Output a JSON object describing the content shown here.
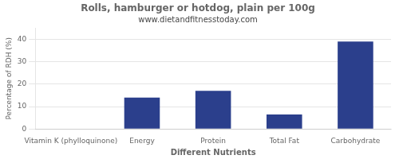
{
  "chart_data": {
    "type": "bar",
    "title": "Rolls, hamburger or hotdog, plain per 100g",
    "subtitle": "www.dietandfitnesstoday.com",
    "xlabel": "Different Nutrients",
    "ylabel": "Percentage of RDH (%)",
    "categories": [
      "Vitamin K (phylloquinone)",
      "Energy",
      "Protein",
      "Total Fat",
      "Carbohydrate"
    ],
    "values": [
      0,
      14,
      17,
      6.5,
      39
    ],
    "color": "#2b3f8c",
    "ylim": [
      0,
      45
    ],
    "yticks": [
      0,
      10,
      20,
      30,
      40
    ],
    "grid": true
  }
}
